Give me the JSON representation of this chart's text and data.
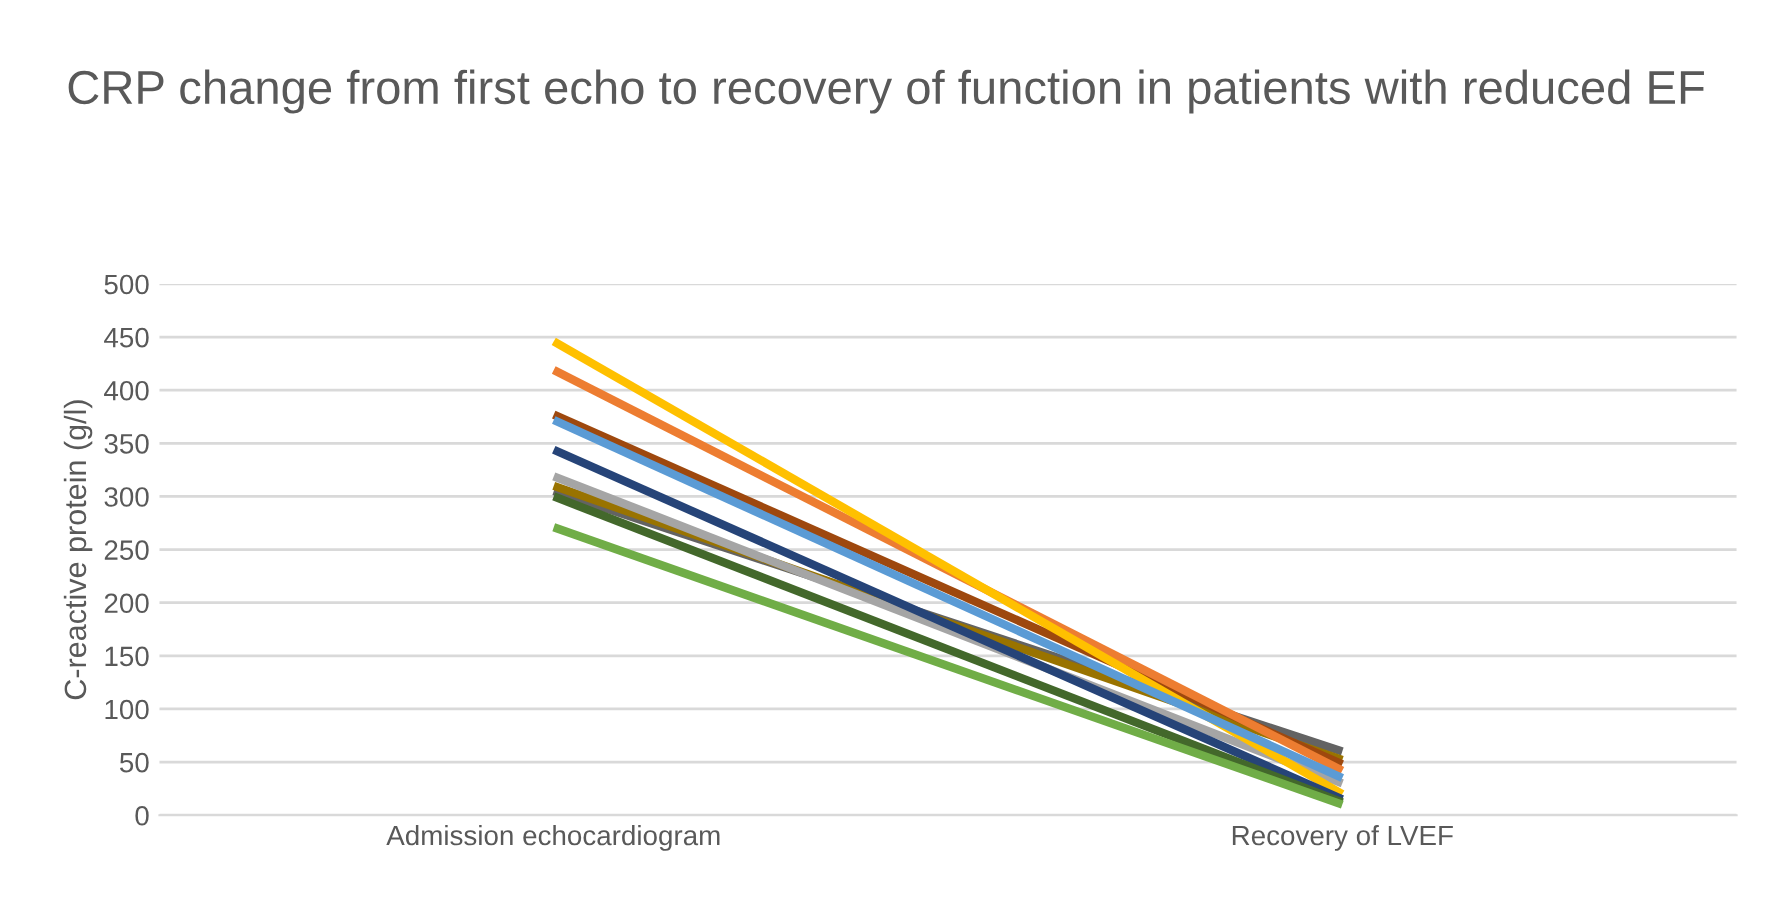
{
  "chart_data": {
    "type": "line",
    "title": "CRP change from first echo to recovery of function in patients with reduced EF",
    "ylabel": "C-reactive protein (g/l)",
    "categories": [
      "Admission echocardiogram",
      "Recovery of LVEF"
    ],
    "ylim": [
      0,
      500
    ],
    "yticks": [
      0,
      50,
      100,
      150,
      200,
      250,
      300,
      350,
      400,
      450,
      500
    ],
    "grid": "y",
    "legend": false,
    "line_style": "solid",
    "marker": "none",
    "series": [
      {
        "color": "#636363",
        "values": [
          305,
          60
        ]
      },
      {
        "color": "#997300",
        "values": [
          310,
          52
        ]
      },
      {
        "color": "#9e480e",
        "values": [
          377,
          48
        ]
      },
      {
        "color": "#ed7d31",
        "values": [
          419,
          42
        ]
      },
      {
        "color": "#a5a5a5",
        "values": [
          319,
          30
        ]
      },
      {
        "color": "#ffc000",
        "values": [
          446,
          20
        ]
      },
      {
        "color": "#264478",
        "values": [
          344,
          15
        ]
      },
      {
        "color": "#5b9bd5",
        "values": [
          372,
          35
        ]
      },
      {
        "color": "#43682b",
        "values": [
          300,
          12
        ]
      },
      {
        "color": "#70ad47",
        "values": [
          271,
          10
        ]
      }
    ]
  }
}
